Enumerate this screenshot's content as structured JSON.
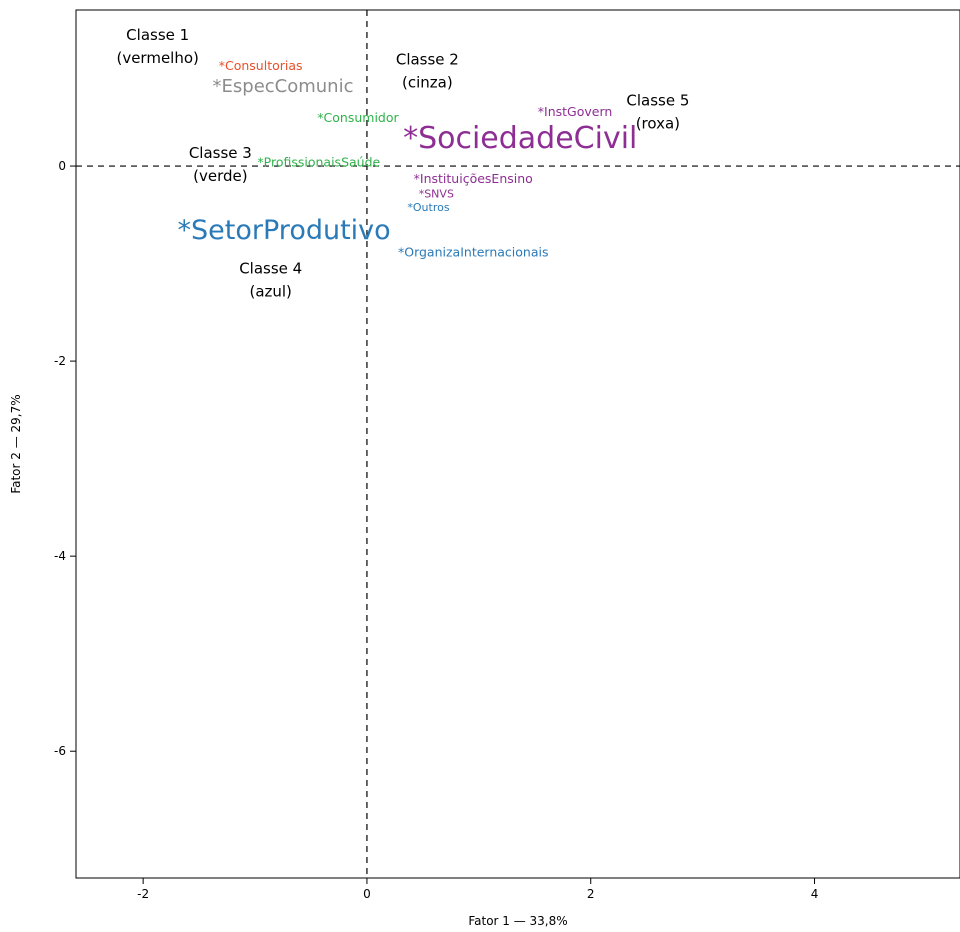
{
  "chart_data": {
    "type": "scatter",
    "xlabel": "Fator 1 — 33,8%",
    "ylabel": "Fator 2 — 29,7%",
    "xlim": [
      -2.6,
      5.3
    ],
    "ylim": [
      -7.3,
      1.6
    ],
    "xticks": [
      -2,
      0,
      2,
      4
    ],
    "yticks": [
      0,
      -2,
      -4,
      -6
    ],
    "reference_lines": {
      "x": 0,
      "y": 0,
      "style": "dashed"
    },
    "grid": false,
    "colors": {
      "vermelho": "#e8502a",
      "cinza": "#8c8c8c",
      "verde": "#2fb24a",
      "azul": "#2a7ab8",
      "roxa": "#8e2e94"
    },
    "points": [
      {
        "label": "*Consultorias",
        "x": -0.95,
        "y": 1.02,
        "color": "#e8502a",
        "size": "small"
      },
      {
        "label": "*EspecComunic",
        "x": -0.75,
        "y": 0.81,
        "color": "#8c8c8c",
        "size": "medium"
      },
      {
        "label": "*Consumidor",
        "x": -0.08,
        "y": 0.49,
        "color": "#2fb24a",
        "size": "small"
      },
      {
        "label": "*ProfissionaisSaúde",
        "x": -0.43,
        "y": 0.03,
        "color": "#2fb24a",
        "size": "small"
      },
      {
        "label": "*SociedadeCivil",
        "x": 1.37,
        "y": 0.27,
        "color": "#8e2e94",
        "size": "xlarge"
      },
      {
        "label": "*InstGovern",
        "x": 1.86,
        "y": 0.55,
        "color": "#8e2e94",
        "size": "small"
      },
      {
        "label": "*InstituiçõesEnsino",
        "x": 0.95,
        "y": -0.14,
        "color": "#8e2e94",
        "size": "small"
      },
      {
        "label": "*SNVS",
        "x": 0.62,
        "y": -0.29,
        "color": "#8e2e94",
        "size": "xsmall"
      },
      {
        "label": "*Outros",
        "x": 0.55,
        "y": -0.43,
        "color": "#2a7ab8",
        "size": "xsmall"
      },
      {
        "label": "*SetorProdutivo",
        "x": -0.74,
        "y": -0.67,
        "color": "#2a7ab8",
        "size": "large"
      },
      {
        "label": "*OrganizaInternacionais",
        "x": 0.95,
        "y": -0.89,
        "color": "#2a7ab8",
        "size": "small"
      }
    ],
    "annotations": [
      {
        "lines": [
          "Classe 1",
          "(vermelho)"
        ],
        "x": -1.87,
        "y": 1.29
      },
      {
        "lines": [
          "Classe 2",
          "(cinza)"
        ],
        "x": 0.54,
        "y": 1.04
      },
      {
        "lines": [
          "Classe 3",
          "(verde)"
        ],
        "x": -1.31,
        "y": 0.08
      },
      {
        "lines": [
          "Classe 4",
          "(azul)"
        ],
        "x": -0.86,
        "y": -1.1
      },
      {
        "lines": [
          "Classe 5",
          "(roxa)"
        ],
        "x": 2.6,
        "y": 0.62
      }
    ]
  }
}
